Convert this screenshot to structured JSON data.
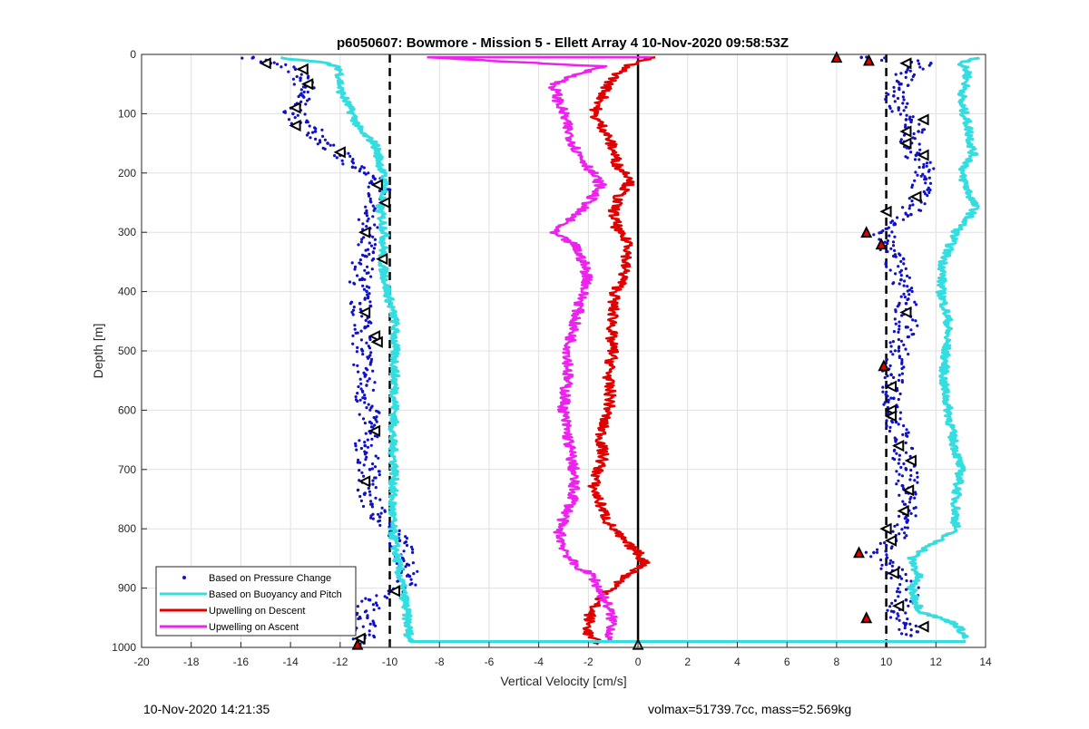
{
  "chart_data": {
    "type": "scatter",
    "title": "p6050607: Bowmore - Mission 5 - Ellett Array 4 10-Nov-2020 09:58:53Z",
    "xlabel": "Vertical Velocity [cm/s]",
    "ylabel": "Depth [m]",
    "xlim": [
      -20,
      14
    ],
    "ylim": [
      1000,
      0
    ],
    "y_reversed": true,
    "grid": true,
    "legend_position": "bottom-left",
    "x_ticks": [
      -20,
      -18,
      -16,
      -14,
      -12,
      -10,
      -8,
      -6,
      -4,
      -2,
      0,
      2,
      4,
      6,
      8,
      10,
      12,
      14
    ],
    "y_ticks": [
      0,
      100,
      200,
      300,
      400,
      500,
      600,
      700,
      800,
      900,
      1000
    ],
    "reference_lines": [
      {
        "x": -10,
        "style": "dashed",
        "color": "#000000"
      },
      {
        "x": 0,
        "style": "solid",
        "color": "#000000"
      },
      {
        "x": 10,
        "style": "dashed",
        "color": "#000000"
      }
    ],
    "series": [
      {
        "name": "Based on Pressure Change",
        "style": "dots",
        "color": "#1010c8",
        "profiles": [
          {
            "depth": [
              5,
              15,
              25,
              40,
              55,
              70,
              85,
              100,
              115,
              130,
              150,
              170,
              190,
              210,
              230,
              260,
              300,
              340,
              380,
              420,
              460,
              500,
              540,
              580,
              620,
              660,
              700,
              740,
              780,
              820,
              860,
              880,
              900,
              920,
              950,
              980,
              995
            ],
            "velocity": [
              -15.5,
              -14.8,
              -13.8,
              -13.6,
              -13.4,
              -13.5,
              -13.8,
              -13.9,
              -13.6,
              -13.0,
              -12.5,
              -12.0,
              -11.5,
              -10.6,
              -10.4,
              -10.6,
              -11.0,
              -11.0,
              -11.2,
              -11.2,
              -11.0,
              -11.1,
              -11.0,
              -11.0,
              -10.8,
              -11.0,
              -10.8,
              -11.0,
              -10.4,
              -9.6,
              -9.3,
              -9.2,
              -9.4,
              -10.8,
              -10.9,
              -11.0,
              -11.2
            ]
          },
          {
            "depth": [
              5,
              15,
              30,
              50,
              70,
              90,
              110,
              130,
              150,
              170,
              190,
              210,
              240,
              270,
              300,
              340,
              380,
              420,
              460,
              500,
              540,
              580,
              620,
              660,
              700,
              740,
              780,
              820,
              840,
              860,
              880,
              900,
              920,
              940,
              960,
              980
            ],
            "velocity": [
              9.0,
              11.8,
              10.8,
              10.6,
              10.3,
              10.5,
              10.8,
              11.3,
              10.9,
              11.2,
              11.5,
              11.6,
              11.2,
              11.0,
              9.8,
              10.3,
              10.6,
              10.8,
              10.8,
              10.5,
              10.2,
              10.3,
              10.4,
              10.6,
              10.8,
              10.9,
              10.8,
              10.4,
              9.5,
              10.0,
              10.5,
              10.9,
              10.8,
              10.3,
              10.8,
              11.0
            ]
          }
        ]
      },
      {
        "name": "Based on Buoyancy and Pitch",
        "style": "line",
        "color": "#33dde0",
        "profiles": [
          {
            "depth": [
              5,
              15,
              25,
              60,
              100,
              130,
              150,
              180,
              220,
              260,
              300,
              350,
              400,
              450,
              500,
              550,
              600,
              650,
              700,
              750,
              800,
              850,
              880,
              900,
              920,
              950,
              990
            ],
            "velocity": [
              -14.5,
              -12.5,
              -12.0,
              -12.0,
              -11.5,
              -11.2,
              -10.6,
              -10.4,
              -10.2,
              -10.4,
              -10.2,
              -10.3,
              -10.1,
              -9.8,
              -9.8,
              -9.8,
              -9.8,
              -9.9,
              -9.8,
              -9.9,
              -9.9,
              -9.7,
              -9.6,
              -9.5,
              -9.4,
              -9.3,
              -9.2
            ]
          },
          {
            "depth": [
              5,
              15,
              30,
              50,
              80,
              120,
              170,
              200,
              230,
              260,
              300,
              350,
              400,
              450,
              500,
              550,
              600,
              650,
              700,
              750,
              800,
              850,
              880,
              900,
              920,
              940,
              960,
              970,
              985
            ],
            "velocity": [
              13.8,
              13.0,
              13.3,
              13.2,
              13.0,
              13.3,
              13.5,
              13.0,
              13.3,
              13.6,
              12.8,
              12.3,
              12.2,
              12.5,
              12.4,
              12.3,
              12.5,
              12.7,
              13.0,
              12.8,
              12.8,
              11.0,
              11.3,
              11.0,
              11.2,
              11.4,
              12.8,
              13.0,
              13.2
            ]
          }
        ]
      },
      {
        "name": "Upwelling on Descent",
        "style": "line",
        "color": "#e00000",
        "profiles": [
          {
            "depth": [
              5,
              20,
              50,
              80,
              100,
              130,
              160,
              190,
              210,
              240,
              270,
              300,
              320,
              350,
              380,
              400,
              420,
              450,
              480,
              500,
              520,
              550,
              580,
              600,
              620,
              650,
              680,
              700,
              730,
              760,
              790,
              820,
              840,
              860,
              880,
              900,
              920,
              940,
              960,
              980,
              995
            ],
            "velocity": [
              0.5,
              -0.5,
              -1.2,
              -1.5,
              -1.8,
              -1.3,
              -1.0,
              -0.8,
              -0.2,
              -0.8,
              -1.0,
              -0.8,
              -0.3,
              -0.5,
              -0.6,
              -0.9,
              -1.0,
              -1.0,
              -1.1,
              -1.0,
              -1.1,
              -1.2,
              -1.1,
              -1.2,
              -1.4,
              -1.5,
              -1.4,
              -1.6,
              -1.8,
              -1.5,
              -1.2,
              -0.6,
              0.0,
              0.3,
              -0.5,
              -1.0,
              -1.6,
              -1.9,
              -2.0,
              -2.0,
              -1.5
            ]
          }
        ]
      },
      {
        "name": "Upwelling on Ascent",
        "style": "line",
        "color": "#ee22ee",
        "profiles": [
          {
            "depth": [
              5,
              20,
              50,
              80,
              100,
              130,
              160,
              190,
              220,
              250,
              280,
              300,
              320,
              350,
              380,
              400,
              430,
              460,
              500,
              530,
              560,
              600,
              650,
              700,
              750,
              800,
              830,
              860,
              880,
              900,
              930,
              960,
              990
            ],
            "velocity": [
              -8.5,
              -1.5,
              -3.4,
              -3.2,
              -3.0,
              -2.8,
              -2.5,
              -2.0,
              -1.5,
              -2.0,
              -2.8,
              -3.5,
              -2.6,
              -2.2,
              -2.0,
              -2.2,
              -2.4,
              -2.6,
              -2.8,
              -2.8,
              -2.9,
              -3.0,
              -2.8,
              -2.6,
              -2.6,
              -3.2,
              -3.0,
              -2.6,
              -1.8,
              -1.6,
              -1.2,
              -1.0,
              -1.2
            ]
          }
        ]
      }
    ],
    "markers": [
      {
        "shape": "left-triangle",
        "velocity": -15.0,
        "depth": 15
      },
      {
        "shape": "left-triangle",
        "velocity": -13.5,
        "depth": 25
      },
      {
        "shape": "left-triangle",
        "velocity": -13.3,
        "depth": 50
      },
      {
        "shape": "left-triangle",
        "velocity": -13.8,
        "depth": 90
      },
      {
        "shape": "left-triangle",
        "velocity": -13.8,
        "depth": 120
      },
      {
        "shape": "left-triangle",
        "velocity": -12.0,
        "depth": 165
      },
      {
        "shape": "left-triangle",
        "velocity": -10.5,
        "depth": 220
      },
      {
        "shape": "left-triangle",
        "velocity": -10.2,
        "depth": 250
      },
      {
        "shape": "left-triangle",
        "velocity": -11.0,
        "depth": 300
      },
      {
        "shape": "left-triangle",
        "velocity": -10.3,
        "depth": 345
      },
      {
        "shape": "left-triangle",
        "velocity": -11.0,
        "depth": 435
      },
      {
        "shape": "left-triangle",
        "velocity": -10.6,
        "depth": 475
      },
      {
        "shape": "left-triangle",
        "velocity": -10.5,
        "depth": 485
      },
      {
        "shape": "left-triangle",
        "velocity": -10.6,
        "depth": 635
      },
      {
        "shape": "left-triangle",
        "velocity": -11.0,
        "depth": 720
      },
      {
        "shape": "left-triangle",
        "velocity": -9.8,
        "depth": 905
      },
      {
        "shape": "left-triangle",
        "velocity": -11.2,
        "depth": 985
      },
      {
        "shape": "left-triangle",
        "velocity": 10.8,
        "depth": 15
      },
      {
        "shape": "left-triangle",
        "velocity": 11.5,
        "depth": 110
      },
      {
        "shape": "left-triangle",
        "velocity": 10.8,
        "depth": 130
      },
      {
        "shape": "left-triangle",
        "velocity": 10.8,
        "depth": 150
      },
      {
        "shape": "left-triangle",
        "velocity": 11.5,
        "depth": 170
      },
      {
        "shape": "left-triangle",
        "velocity": 11.2,
        "depth": 240
      },
      {
        "shape": "left-triangle",
        "velocity": 10.0,
        "depth": 265
      },
      {
        "shape": "left-triangle",
        "velocity": 10.8,
        "depth": 435
      },
      {
        "shape": "left-triangle",
        "velocity": 10.2,
        "depth": 560
      },
      {
        "shape": "left-triangle",
        "velocity": 10.2,
        "depth": 600
      },
      {
        "shape": "left-triangle",
        "velocity": 10.2,
        "depth": 610
      },
      {
        "shape": "left-triangle",
        "velocity": 10.5,
        "depth": 660
      },
      {
        "shape": "left-triangle",
        "velocity": 11.0,
        "depth": 685
      },
      {
        "shape": "left-triangle",
        "velocity": 10.9,
        "depth": 735
      },
      {
        "shape": "left-triangle",
        "velocity": 10.7,
        "depth": 770
      },
      {
        "shape": "left-triangle",
        "velocity": 10.0,
        "depth": 800
      },
      {
        "shape": "left-triangle",
        "velocity": 10.2,
        "depth": 820
      },
      {
        "shape": "left-triangle",
        "velocity": 10.3,
        "depth": 875
      },
      {
        "shape": "left-triangle",
        "velocity": 10.5,
        "depth": 930
      },
      {
        "shape": "left-triangle",
        "velocity": 11.5,
        "depth": 965
      },
      {
        "shape": "up-triangle",
        "velocity": 0.0,
        "depth": 995
      },
      {
        "shape": "up-triangle-red",
        "velocity": 8.0,
        "depth": 5
      },
      {
        "shape": "up-triangle-red",
        "velocity": 9.3,
        "depth": 10
      },
      {
        "shape": "up-triangle-red",
        "velocity": 9.2,
        "depth": 300
      },
      {
        "shape": "up-triangle-red",
        "velocity": 9.8,
        "depth": 320
      },
      {
        "shape": "up-triangle-red",
        "velocity": 9.9,
        "depth": 525
      },
      {
        "shape": "up-triangle-red",
        "velocity": 8.9,
        "depth": 840
      },
      {
        "shape": "up-triangle-red",
        "velocity": 9.2,
        "depth": 950
      },
      {
        "shape": "up-triangle-red",
        "velocity": -11.3,
        "depth": 995
      }
    ]
  },
  "footer": {
    "timestamp": "10-Nov-2020 14:21:35",
    "summary": "volmax=51739.7cc, mass=52.569kg"
  }
}
